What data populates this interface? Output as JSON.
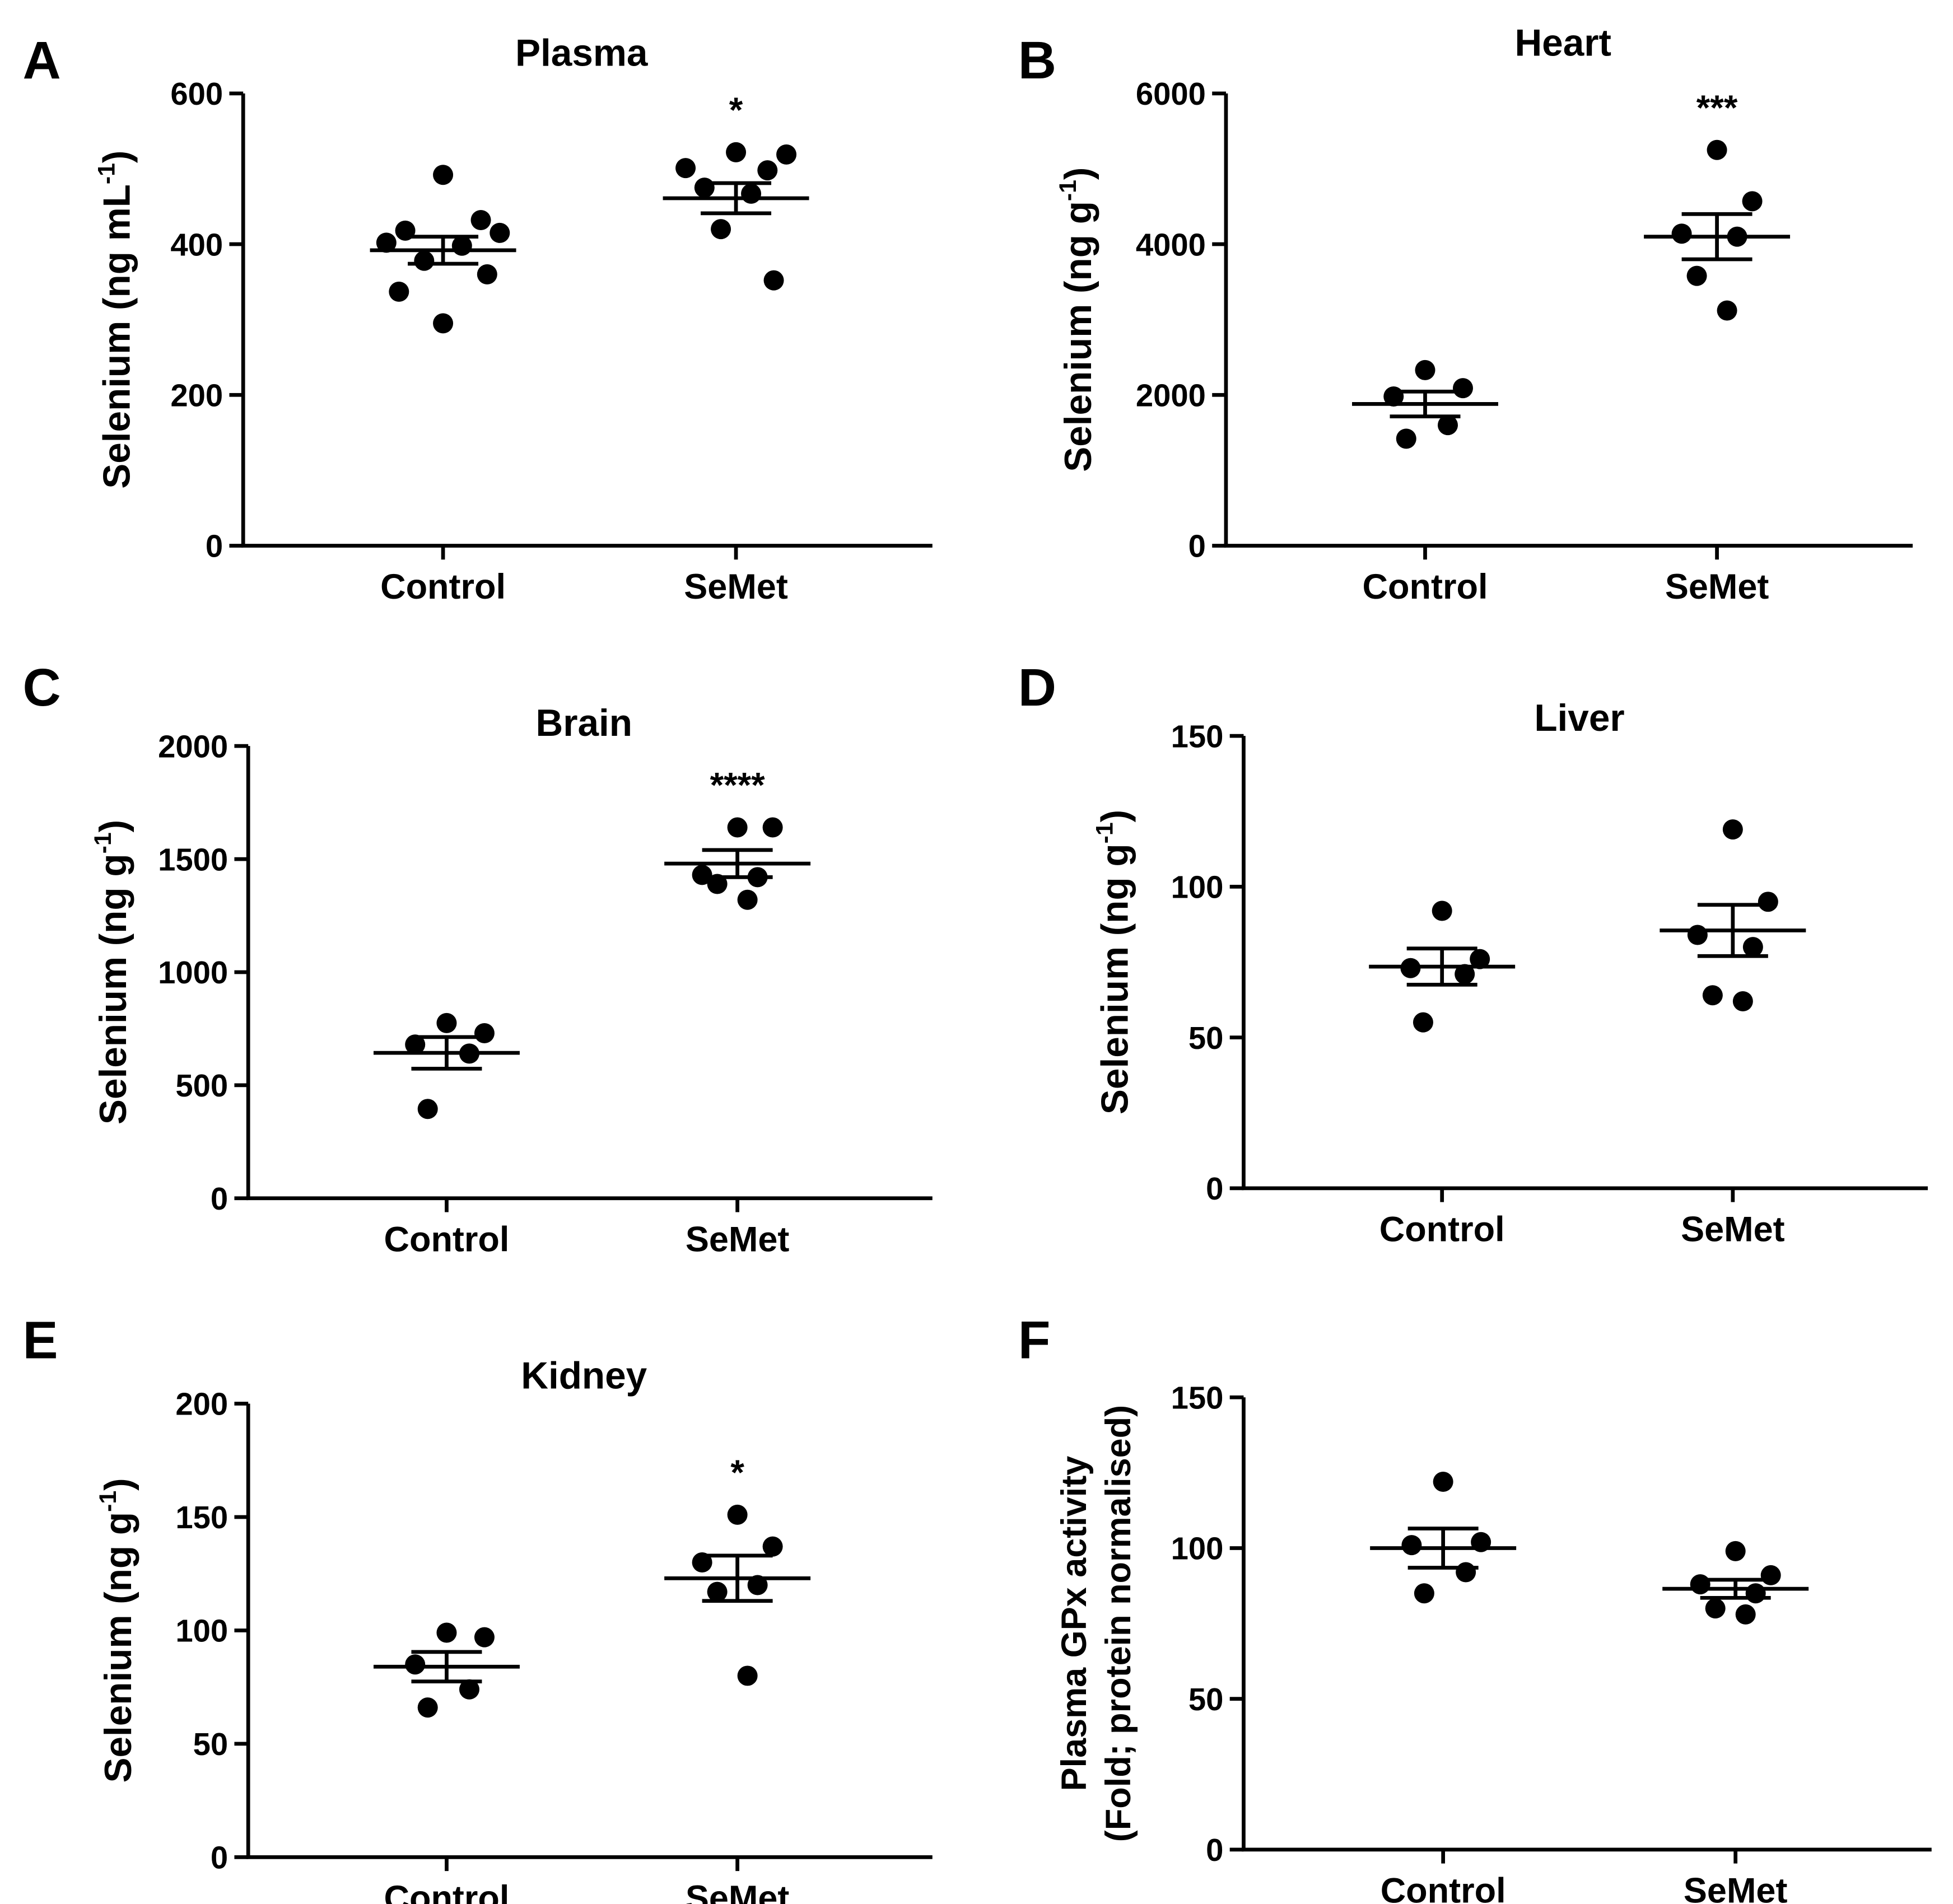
{
  "chart_data": [
    {
      "panel": "A",
      "type": "scatter",
      "title": "Plasma",
      "ylabel": "Selenium (ng mL",
      "ylabel_sup": "-1",
      "ylabel_close": ")",
      "ylim": [
        0,
        600
      ],
      "yticks": [
        0,
        200,
        400,
        600
      ],
      "categories": [
        "Control",
        "SeMet"
      ],
      "groups": [
        {
          "name": "Control",
          "points": [
            492,
            432,
            418,
            415,
            402,
            398,
            378,
            360,
            337,
            295
          ],
          "mean": 392,
          "sem": 18,
          "sig": ""
        },
        {
          "name": "SeMet",
          "points": [
            522,
            519,
            501,
            498,
            475,
            467,
            420,
            352
          ],
          "mean": 461,
          "sem": 20,
          "sig": "*"
        }
      ]
    },
    {
      "panel": "B",
      "type": "scatter",
      "title": "Heart",
      "ylabel": "Selenium (ng g",
      "ylabel_sup": "-1",
      "ylabel_close": ")",
      "ylim": [
        0,
        6000
      ],
      "yticks": [
        0,
        2000,
        4000,
        6000
      ],
      "categories": [
        "Control",
        "SeMet"
      ],
      "groups": [
        {
          "name": "Control",
          "points": [
            2330,
            2090,
            1980,
            1600,
            1420
          ],
          "mean": 1880,
          "sem": 165,
          "sig": ""
        },
        {
          "name": "SeMet",
          "points": [
            5250,
            4570,
            4140,
            4100,
            3580,
            3120
          ],
          "mean": 4100,
          "sem": 300,
          "sig": "***"
        }
      ]
    },
    {
      "panel": "C",
      "type": "scatter",
      "title": "Brain",
      "ylabel": "Selenium (ng g",
      "ylabel_sup": "-1",
      "ylabel_close": ")",
      "ylim": [
        0,
        2000
      ],
      "yticks": [
        0,
        500,
        1000,
        1500,
        2000
      ],
      "categories": [
        "Control",
        "SeMet"
      ],
      "groups": [
        {
          "name": "Control",
          "points": [
            775,
            730,
            680,
            640,
            395
          ],
          "mean": 643,
          "sem": 70,
          "sig": ""
        },
        {
          "name": "SeMet",
          "points": [
            1640,
            1640,
            1430,
            1420,
            1390,
            1320
          ],
          "mean": 1480,
          "sem": 60,
          "sig": "****"
        }
      ]
    },
    {
      "panel": "D",
      "type": "scatter",
      "title": "Liver",
      "ylabel": "Selenium (ng g",
      "ylabel_sup": "-1",
      "ylabel_close": ")",
      "ylim": [
        0,
        150
      ],
      "yticks": [
        0,
        50,
        100,
        150
      ],
      "categories": [
        "Control",
        "SeMet"
      ],
      "groups": [
        {
          "name": "Control",
          "points": [
            92,
            76,
            73,
            71,
            55
          ],
          "mean": 73.5,
          "sem": 6,
          "sig": ""
        },
        {
          "name": "SeMet",
          "points": [
            119,
            95,
            84,
            80,
            64,
            62
          ],
          "mean": 85.5,
          "sem": 8.5,
          "sig": ""
        }
      ]
    },
    {
      "panel": "E",
      "type": "scatter",
      "title": "Kidney",
      "ylabel": "Selenium (ng g",
      "ylabel_sup": "-1",
      "ylabel_close": ")",
      "ylim": [
        0,
        200
      ],
      "yticks": [
        0,
        50,
        100,
        150,
        200
      ],
      "categories": [
        "Control",
        "SeMet"
      ],
      "groups": [
        {
          "name": "Control",
          "points": [
            99,
            97,
            85,
            74,
            66
          ],
          "mean": 84,
          "sem": 6.5,
          "sig": ""
        },
        {
          "name": "SeMet",
          "points": [
            151,
            137,
            130,
            120,
            117,
            80
          ],
          "mean": 123,
          "sem": 10,
          "sig": "*"
        }
      ]
    },
    {
      "panel": "F",
      "type": "scatter",
      "title": "",
      "ylabel": "Plasma GPx activity",
      "ylabel2": "(Fold; protein normalised)",
      "ylim": [
        0,
        150
      ],
      "yticks": [
        0,
        50,
        100,
        150
      ],
      "categories": [
        "Control",
        "SeMet"
      ],
      "groups": [
        {
          "name": "Control",
          "points": [
            122,
            102,
            101,
            92,
            85
          ],
          "mean": 100,
          "sem": 6.5,
          "sig": ""
        },
        {
          "name": "SeMet",
          "points": [
            99,
            91,
            88,
            85,
            80,
            78
          ],
          "mean": 86.5,
          "sem": 3,
          "sig": ""
        }
      ]
    }
  ]
}
